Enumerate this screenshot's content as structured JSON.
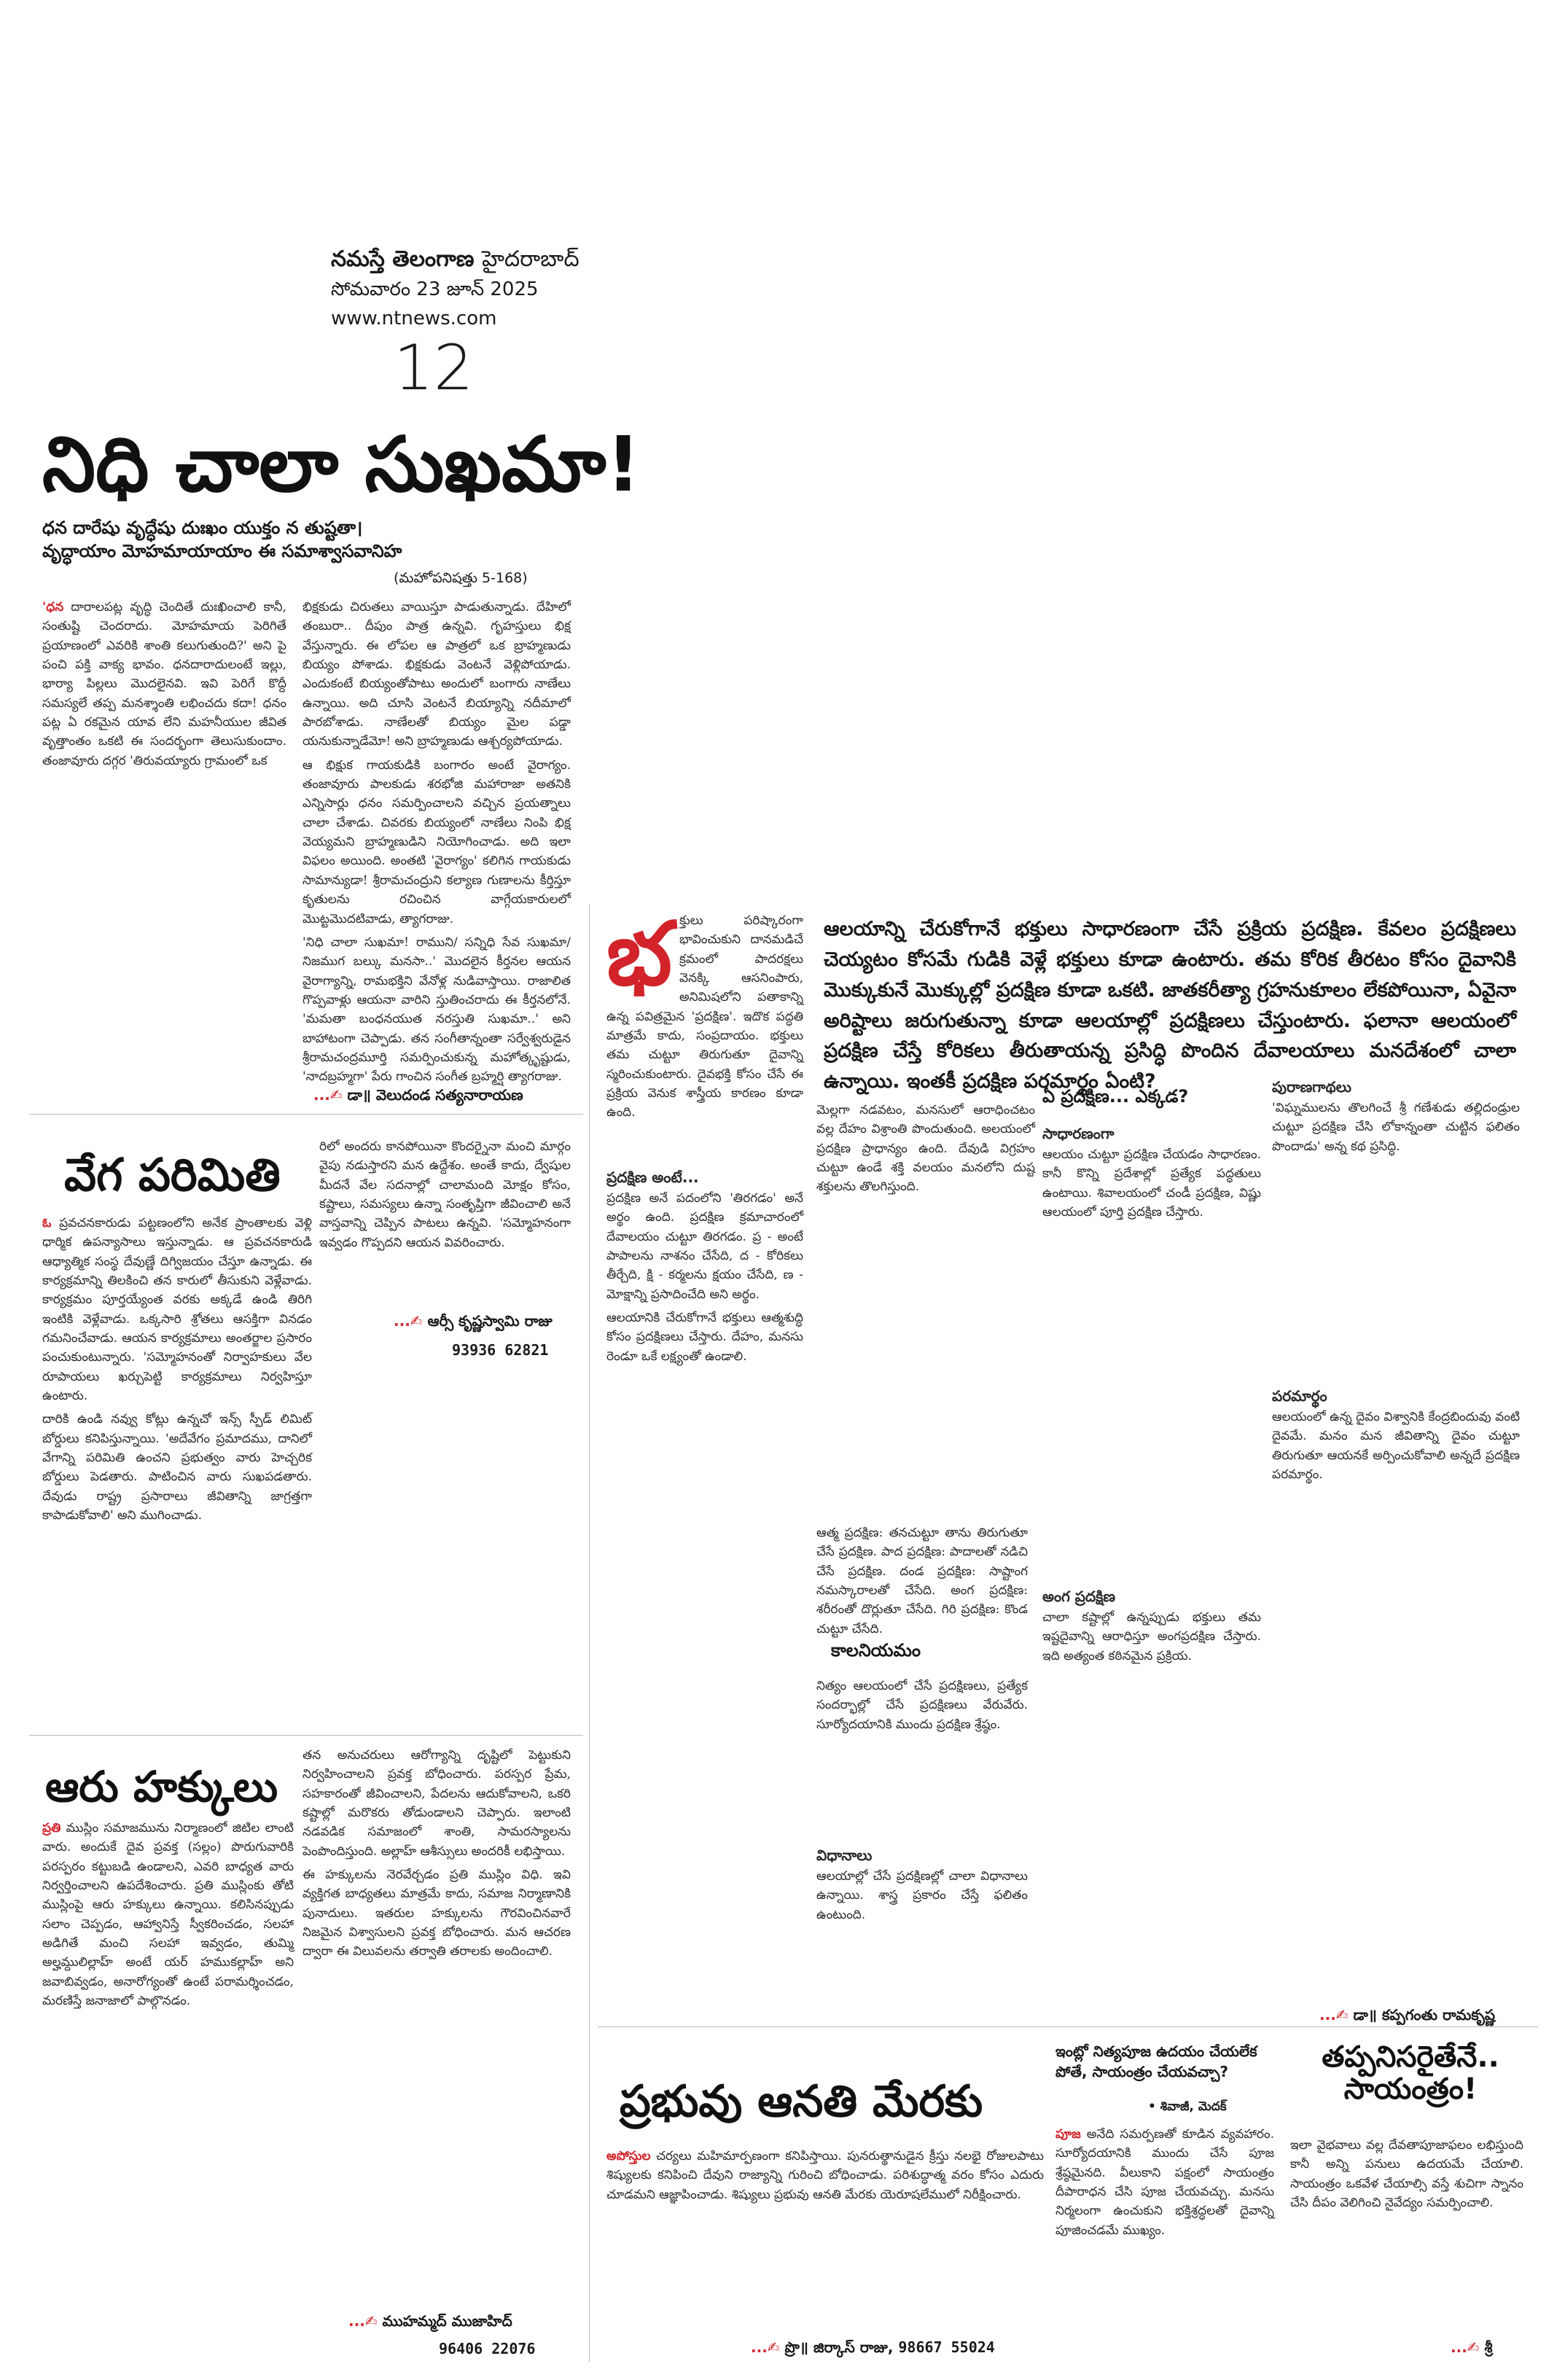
{
  "masthead": {
    "paper": "నమస్తే తెలంగాణ",
    "city": "హైదరాబాద్",
    "date": "సోమవారం 23 జూన్ 2025",
    "site": "www.ntnews.com",
    "page": "12"
  },
  "main": {
    "headline": "నిధి చాలా సుఖమా!",
    "verse1": "ధన దారేషు వృద్ధేషు దుఃఖం యుక్తం న తుష్టతా।",
    "verse2": "వృద్ధాయాం మోహమాయాయాం ఈ సమాశ్వాసవానిహ",
    "verse_src": "(మహోపనిషత్తు 5-168)",
    "p1_lead": "'ధన",
    "p1": "దారాలపట్ల వృద్ధి చెందితే దుఃఖించాలి కానీ, సంతుష్టి చెందరాదు. మోహమాయ పెరిగితే ప్రయాణంలో ఎవరికి శాంతి కలుగుతుంది?' అని పై పంచి పక్తి వాక్య భావం. ధనదారాదులంటే ఇల్లు, భార్యా పిల్లలు మొదలైనవి. ఇవి పెరిగే కొద్దీ సమస్యలే తప్ప మనశ్శాంతి లభించదు కదా! ధనం పట్ల ఏ రకమైన యావ లేని మహనీయుల జీవిత వృత్తాంతం ఒకటి ఈ సందర్భంగా తెలుసుకుందాం. తంజావూరు దగ్గర 'తిరువయ్యారు గ్రామంలో ఒక",
    "p2": "భిక్షకుడు చిరుతలు వాయిస్తూ పాడుతున్నాడు. దేహిలో తంబురా.. దీపుం పాత్ర ఉన్నవి. గృహస్తులు భిక్ష వేస్తున్నారు. ఈ లోపల ఆ పాత్రలో ఒక బ్రాహ్మణుడు బియ్యం పోశాడు. భిక్షకుడు వెంటనే వెళ్లిపోయాడు. ఎందుకంటే బియ్యంతోపాటు అందులో బంగారు నాణేలు ఉన్నాయి. అది చూసి వెంటనే బియ్యాన్ని నదీమాలో పారబోశాడు. నాణేలతో బియ్యం మైల పడ్డా యనుకున్నాడేమో! అని బ్రాహ్మణుడు ఆశ్చర్యపోయాడు.",
    "p3": "ఆ భిక్షుక గాయకుడికి బంగారం అంటే వైరాగ్యం. తంజావూరు పాలకుడు శరభోజి మహారాజా అతనికి ఎన్నిసార్లు ధనం సమర్పించాలని వచ్చిన ప్రయత్నాలు చాలా చేశాడు. చివరకు బియ్యంలో నాణేలు నింపి భిక్ష వెయ్యమని బ్రాహ్మణుడిని నియోగించాడు. అది ఇలా విఫలం అయింది. అంతటి 'వైరాగ్యం' కలిగిన గాయకుడు సామాన్యుడా! శ్రీరామచంద్రుని కల్యాణ గుణాలను కీర్తిస్తూ కృతులను రచించిన వాగ్గేయకారులలో మొట్టమొదటివాడు, త్యాగరాజు.",
    "p4": "'నిధి చాలా సుఖమా! రాముని/ సన్నిధి సేవ సుఖమా/ నిజముగ బల్కు మనసా..' మొదలైన కీర్తనల ఆయన వైరాగ్యాన్ని, రామభక్తిని వేనోళ్ల నుడివాస్తాయి. రాజాలిత గొప్పవాళ్లు ఆయనా వారిని స్తుతించరాదు ఈ కీర్తనలోనే. 'మమతా బంధనయుత నరస్తుతి సుఖమా..' అని బాహాటంగా చెప్పాడు. తన సంగీతాన్నంతా సర్వేశ్వరుడైన శ్రీరామచంద్రమూర్తి సమర్పించుకున్న మహోత్కృష్టుడు, 'నాదబ్రహ్మగా' పేరు గాంచిన సంగీత బ్రహ్మర్షి త్యాగరాజు.",
    "byline": "డా॥ వెలుదండ సత్యనారాయణ"
  },
  "speed": {
    "headline": "వేగ పరిమితి",
    "lead": "ఓ",
    "p1": "ప్రవచనకారుడు పట్టణంలోని అనేక ప్రాంతాలకు వెళ్లి ధార్మిక ఉపన్యాసాలు ఇస్తున్నాడు. ఆ ప్రవచనకారుడి ఆధ్యాత్మిక సంస్థ దేవుణ్ణే దిగ్విజయం చేస్తూ ఉన్నాడు. ఈ కార్యక్రమాన్ని తిలకించి తన కారులో తీసుకుని వెళ్లేవాడు. కార్యక్రమం పూర్తయ్యేంత వరకు అక్కడే ఉండి తిరిగి ఇంటికి వెళ్లేవాడు. ఒక్కసారి శ్రోతలు ఆసక్తిగా వినడం గమనించేవాడు. ఆయన కార్యక్రమాలు అంతర్జాల ప్రసారం పంచుకుంటున్నారు. 'సమ్మోహనంతో నిర్వాహకులు వేల రూపాయలు ఖర్చుపెట్టి కార్యక్రమాలు నిర్వహిస్తూ ఉంటారు.",
    "p2": "దారికి ఉండి నవ్వు కోట్లు ఉన్నచో ఇన్స్ స్పీడ్ లిమిట్ బోర్డులు కనిపిస్తున్నాయి. 'అదేవేగం ప్రమాదము, దానిలో వేగాన్ని పరిమితి ఉంచని ప్రభుత్వం వారు హెచ్చరిక బోర్డులు పెడతారు. పాటించిన వారు సుఖపడతారు. దేవుడు రాష్ట్ర ప్రసారాలు జీవితాన్ని జాగ్రత్తగా కాపాడుకోవాలి' అని ముగించాడు.",
    "p3": "రిలో అందరు కానపోయినా కొందర్నైనా మంచి మార్గం వైపు నడుస్తారని మన ఉద్దేశం. అంతే కాదు, ద్వేషుల మీదనే వేల సదనాల్లో చాలామంది మోక్షం కోసం, కష్టాలు, సమస్యలు ఉన్నా సంతృప్తిగా జీవించాలి అనే వాస్తవాన్ని చెప్పిన పాటలు ఉన్నవి. 'సమ్మోహనంగా ఇవ్వడం గొప్పదని ఆయన వివరించారు.",
    "byline": "ఆర్సీ కృష్ణస్వామి రాజు",
    "phone": "93936 62821"
  },
  "rights": {
    "headline": "ఆరు హక్కులు",
    "lead": "ప్రతి",
    "p1": "ముస్లిం సమాజమును నిర్మాణంలో జిటిల లాంటి వారు. అందుకే దైవ ప్రవక్త (సల్లం) పొరుగువారికి పరస్పరం కట్టుబడి ఉండాలని, ఎవరి బాధ్యత వారు నిర్వర్తించాలని ఉపదేశించారు. ప్రతి ముస్లింకు తోటి ముస్లింపై ఆరు హక్కులు ఉన్నాయి. కలిసినప్పుడు సలాం చెప్పడం, ఆహ్వానిస్తే స్వీకరించడం, సలహా అడిగితే మంచి సలహా ఇవ్వడం, తుమ్మి అల్హమ్దులిల్లాహ్ అంటే యర్ హముకల్లాహ్ అని జవాబివ్వడం, అనారోగ్యంతో ఉంటే పరామర్శించడం, మరణిస్తే జనాజాలో పాల్గొనడం.",
    "p2": "తన అనుచరులు ఆరోగ్యాన్ని దృష్టిలో పెట్టుకుని నిర్వహించాలని ప్రవక్త బోధించారు. పరస్పర ప్రేమ, సహకారంతో జీవించాలని, పేదలను ఆదుకోవాలని, ఒకరి కష్టాల్లో మరొకరు తోడుండాలని చెప్పారు. ఇలాంటి నడవడిక సమాజంలో శాంతి, సామరస్యాలను పెంపొందిస్తుంది. అల్లాహ్ ఆశీస్సులు అందరికీ లభిస్తాయి.",
    "p3": "ఈ హక్కులను నెరవేర్చడం ప్రతి ముస్లిం విధి. ఇవి వ్యక్తిగత బాధ్యతలు మాత్రమే కాదు, సమాజ నిర్మాణానికి పునాదులు. ఇతరుల హక్కులను గౌరవించినవారే నిజమైన విశ్వాసులని ప్రవక్త బోధించారు. మన ఆచరణ ద్వారా ఈ విలువలను తర్వాతి తరాలకు అందించాలి.",
    "byline": "ముహమ్మద్ ముజాహిద్",
    "phone": "96406 22076"
  },
  "pradakshina": {
    "pull": "ఆలయాన్ని చేరుకోగానే భక్తులు సాధారణంగా చేసే ప్రక్రియ ప్రదక్షిణ. కేవలం ప్రదక్షిణలు చెయ్యటం కోసమే గుడికి వెళ్లే భక్తులు కూడా ఉంటారు. తమ కోరిక తీరటం కోసం దైవానికి మొక్కుకునే మొక్కుల్లో ప్రదక్షిణ కూడా ఒకటి. జాతకరీత్యా గ్రహనుకూలం లేకపోయినా, ఏవైనా అరిష్టాలు జరుగుతున్నా కూడా ఆలయాల్లో ప్రదక్షిణలు చేస్తుంటారు. ఫలానా ఆలయంలో ప్రదక్షిణ చేస్తే కోరికలు తీరుతాయన్న ప్రసిద్ధి పొందిన దేవాలయాలు మనదేశంలో చాలా ఉన్నాయి. ఇంతకీ ప్రదక్షిణ పరమార్థం ఏంటి?",
    "dropcap": "భ",
    "intro": "క్తులు పరిష్కారంగా భావించుకుని దానమడిచే క్రమంలో పాదరక్షలు వెనక్కి ఆసనింపారు, అనిమిషలోని పతాకాన్ని ఉన్న పవిత్రమైన 'ప్రదక్షిణ'. ఇదొక పద్ధతి మాత్రమే కాదు, సంప్రదాయం. భక్తులు తమ చుట్టూ తిరుగుతూ దైవాన్ని స్మరించుకుంటారు. దైవభక్తి కోసం చేసే ఈ ప్రక్రియ వెనుక శాస్త్రీయ కారణం కూడా ఉంది.",
    "intro2": "మెల్లగా నడవటం, మనసులో ఆరాధించటం వల్ల దేహం విశ్రాంతి పొందుతుంది. అలయంలో ప్రదక్షిణ ప్రాధాన్యం ఉంది. దేవుడి విగ్రహం చుట్టూ ఉండే శక్తి వలయం మనలోని దుష్ట శక్తులను తొలగిస్తుంది.",
    "ante_head": "ప్రదక్షిణ అంటే...",
    "ante": "ప్రదక్షిణ అనే పదంలోని 'తిరగడం' అనే అర్థం ఉంది. ప్రదక్షిణ క్రమాచారంలో దేవాలయం చుట్టూ తిరగడం. ప్ర - అంటే పాపాలను నాశనం చేసేది, ద - కోరికలు తీర్చేది, క్షి - కర్మలను క్షయం చేసేది, ణ - మోక్షాన్ని ప్రసాదించేది అని అర్థం.",
    "ante2": "ఆలయానికి చేరుకోగానే భక్తులు ఆత్మశుద్ధి కోసం ప్రదక్షిణలు చేస్తారు. దేహం, మనసు రెండూ ఒకే లక్ష్యంతో ఉండాలి.",
    "where_head": "ఏ ప్రదక్షిణ... ఎక్కడ?",
    "sadharana_head": "సాధారణంగా",
    "sadharana": "ఆలయం చుట్టూ ప్రదక్షిణ చేయడం సాధారణం. కానీ కొన్ని ప్రదేశాల్లో ప్రత్యేక పద్ధతులు ఉంటాయి. శివాలయంలో చండీ ప్రదక్షిణ, విష్ణు ఆలయంలో పూర్తి ప్రదక్షిణ చేస్తారు.",
    "types": "ఆత్మ ప్రదక్షిణ: తనచుట్టూ తాను తిరుగుతూ చేసే ప్రదక్షిణ. పాద ప్రదక్షిణ: పాదాలతో నడిచి చేసే ప్రదక్షిణ. దండ ప్రదక్షిణ: సాష్టాంగ నమస్కారాలతో చేసేది. అంగ ప్రదక్షిణ: శరీరంతో దొర్లుతూ చేసేది. గిరి ప్రదక్షిణ: కొండ చుట్టూ చేసేది.",
    "anga_head": "అంగ ప్రదక్షిణ",
    "anga": "చాలా కష్టాల్లో ఉన్నప్పుడు భక్తులు తమ ఇష్టదైవాన్ని ఆరాధిస్తూ అంగప్రదక్షిణ చేస్తారు. ఇది అత్యంత కఠినమైన ప్రక్రియ.",
    "nityam_head": "కాలనియమం",
    "nityam": "నిత్యం ఆలయంలో చేసే ప్రదక్షిణలు, ప్రత్యేక సందర్భాల్లో చేసే ప్రదక్షిణలు వేరువేరు. సూర్యోదయానికి ముందు ప్రదక్షిణ శ్రేష్ఠం.",
    "vidhanalu_head": "విధానాలు",
    "vidhanalu": "ఆలయాల్లో చేసే ప్రదక్షిణల్లో చాలా విధానాలు ఉన్నాయి. శాస్త్ర ప్రకారం చేస్తే ఫలితం ఉంటుంది.",
    "puranam_head": "పురాణగాథలు",
    "puranam": "'విఘ్నములను తొలగించే శ్రీ గణేశుడు తల్లిదండ్రుల చుట్టూ ప్రదక్షిణ చేసి లోకాన్నంతా చుట్టిన ఫలితం పొందాడు' అన్న కథ ప్రసిద్ధి.",
    "paramartham_head": "పరమార్థం",
    "paramartham": "ఆలయంలో ఉన్న దైవం విశ్వానికి కేంద్రబిందువు వంటి దైవమే. మనం మన జీవితాన్ని దైవం చుట్టూ తిరుగుతూ ఆయనకే అర్పించుకోవాలి అన్నదే ప్రదక్షిణ పరమార్థం.",
    "byline": "డా॥ కప్పగంతు రామకృష్ణ"
  },
  "prabhuvu": {
    "headline": "ప్రభువు ఆనతి మేరకు",
    "lead": "అపోస్తుల",
    "p1": "చర్యలు మహిమార్పణంగా కనిపిస్తాయి. పునరుత్థానుడైన క్రీస్తు నలభై రోజులపాటు శిష్యులకు కనిపించి దేవుని రాజ్యాన్ని గురించి బోధించాడు. పరిశుద్ధాత్మ వరం కోసం ఎదురు చూడమని ఆజ్ఞాపించాడు. శిష్యులు ప్రభువు ఆనతి మేరకు యెరూషలేములో నిరీక్షించారు.",
    "byline": "ప్రొ॥ జిర్కాస్ రాజు",
    "phone": "98667 55024"
  },
  "nityapuja": {
    "headline": "ఇంట్లో నిత్యపూజ ఉదయం చేయలేక పోతే, సాయంత్రం చేయవచ్చా?",
    "asker": "• శివాజీ, మెదక్",
    "lead": "పూజ",
    "p1": "అనేది సమర్పణతో కూడిన వ్యవహారం. సూర్యోదయానికి ముందు చేసే పూజ శ్రేష్ఠమైనది. వీలుకాని పక్షంలో సాయంత్రం దీపారాధన చేసి పూజ చేయవచ్చు. మనసు నిర్మలంగా ఉంచుకుని భక్తిశ్రద్ధలతో దైవాన్ని పూజించడమే ముఖ్యం."
  },
  "tappanisari": {
    "headline": "తప్పనిసరైతేనే.. సాయంత్రం!",
    "p1": "ఇలా వైభవాలు వల్ల దేవతాపూజాఫలం లభిస్తుంది కానీ అన్ని పనులు ఉదయమే చేయాలి. సాయంత్రం ఒకవేళ చేయాల్సి వస్తే శుచిగా స్నానం చేసి దీపం వెలిగించి నైవేద్యం సమర్పించాలి.",
    "byline": "శ్రీ"
  },
  "colors": {
    "accent": "#d2232a",
    "text": "#1a1a1a"
  }
}
